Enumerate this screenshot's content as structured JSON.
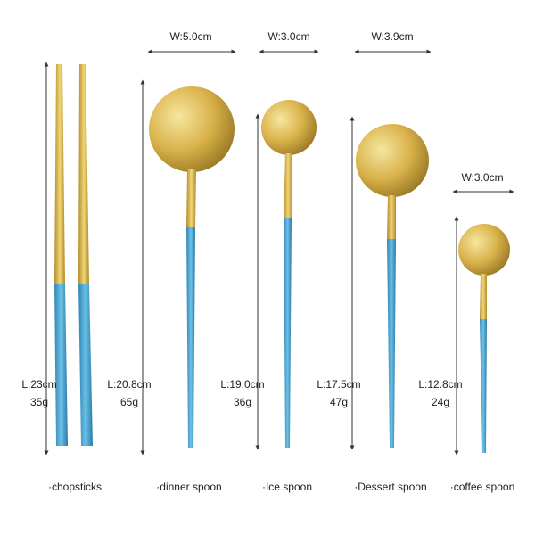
{
  "items": [
    {
      "name": "·chopsticks",
      "length": "L:23cm",
      "weight": "35g"
    },
    {
      "name": "·dinner spoon",
      "width": "W:5.0cm",
      "length": "L:20.8cm",
      "weight": "65g"
    },
    {
      "name": "·Ice spoon",
      "width": "W:3.0cm",
      "length": "L:19.0cm",
      "weight": "36g"
    },
    {
      "name": "·Dessert spoon",
      "width": "W:3.9cm",
      "length": "L:17.5cm",
      "weight": "47g"
    },
    {
      "name": "·coffee spoon",
      "width": "W:3.0cm",
      "length": "L:12.8cm",
      "weight": "24g"
    }
  ]
}
